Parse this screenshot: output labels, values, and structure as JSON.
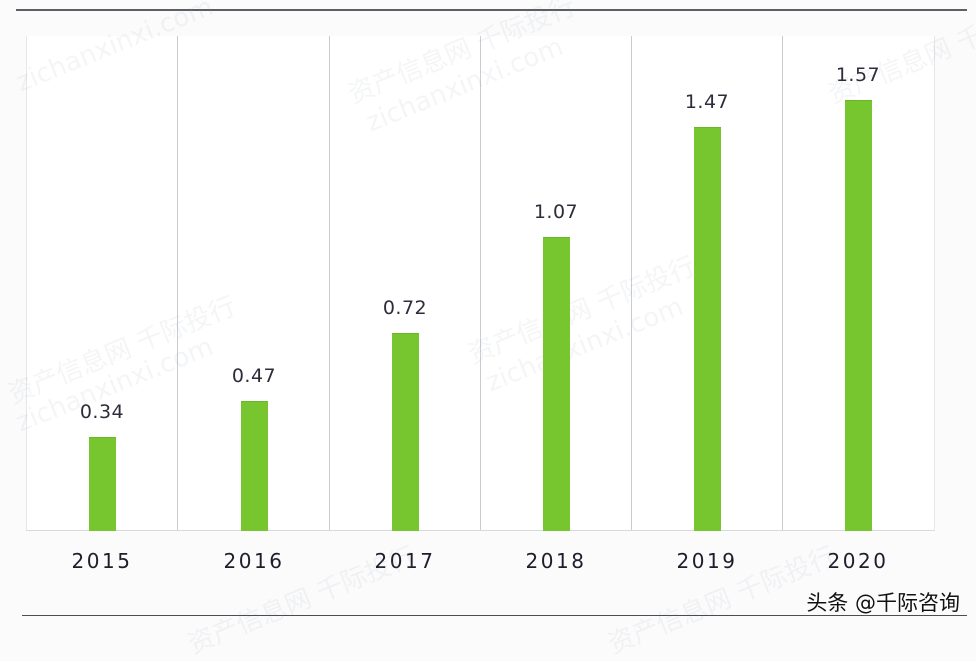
{
  "chart_data": {
    "type": "bar",
    "title": "",
    "xlabel": "",
    "ylabel": "",
    "categories": [
      "2015",
      "2016",
      "2017",
      "2018",
      "2019",
      "2020"
    ],
    "values": [
      0.34,
      0.47,
      0.72,
      1.07,
      1.47,
      1.57
    ],
    "value_labels": [
      "0.34",
      "0.47",
      "0.72",
      "1.07",
      "1.47",
      "1.57"
    ],
    "ylim": [
      0,
      1.8
    ],
    "grid": "vertical separators between categories",
    "legend": "none",
    "bar_color": "#77c62f"
  },
  "source_credit": "头条 @千际咨询",
  "watermarks": [
    "资产信息网 千际投行",
    "zichanxinxi.com"
  ]
}
